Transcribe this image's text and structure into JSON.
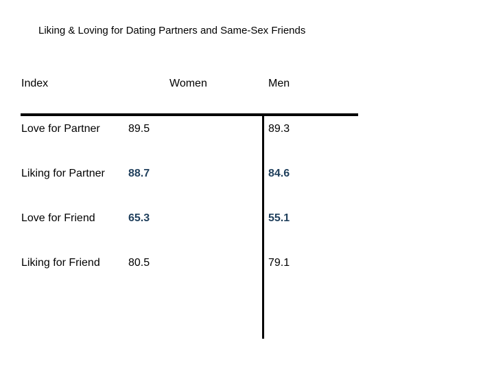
{
  "title": "Liking & Loving for Dating Partners and Same-Sex Friends",
  "headers": {
    "index": "Index",
    "women": "Women",
    "men": "Men"
  },
  "rows": [
    {
      "label": "Love for Partner",
      "women": "89.5",
      "men": "89.3",
      "highlight": false
    },
    {
      "label": "Liking for Partner",
      "women": "88.7",
      "men": "84.6",
      "highlight": true
    },
    {
      "label": "Love for Friend",
      "women": "65.3",
      "men": "55.1",
      "highlight": true
    },
    {
      "label": "Liking for Friend",
      "women": "80.5",
      "men": "79.1",
      "highlight": false
    }
  ],
  "colors": {
    "text": "#000000",
    "highlight_text": "#1f3f5c",
    "rule": "#000000"
  }
}
